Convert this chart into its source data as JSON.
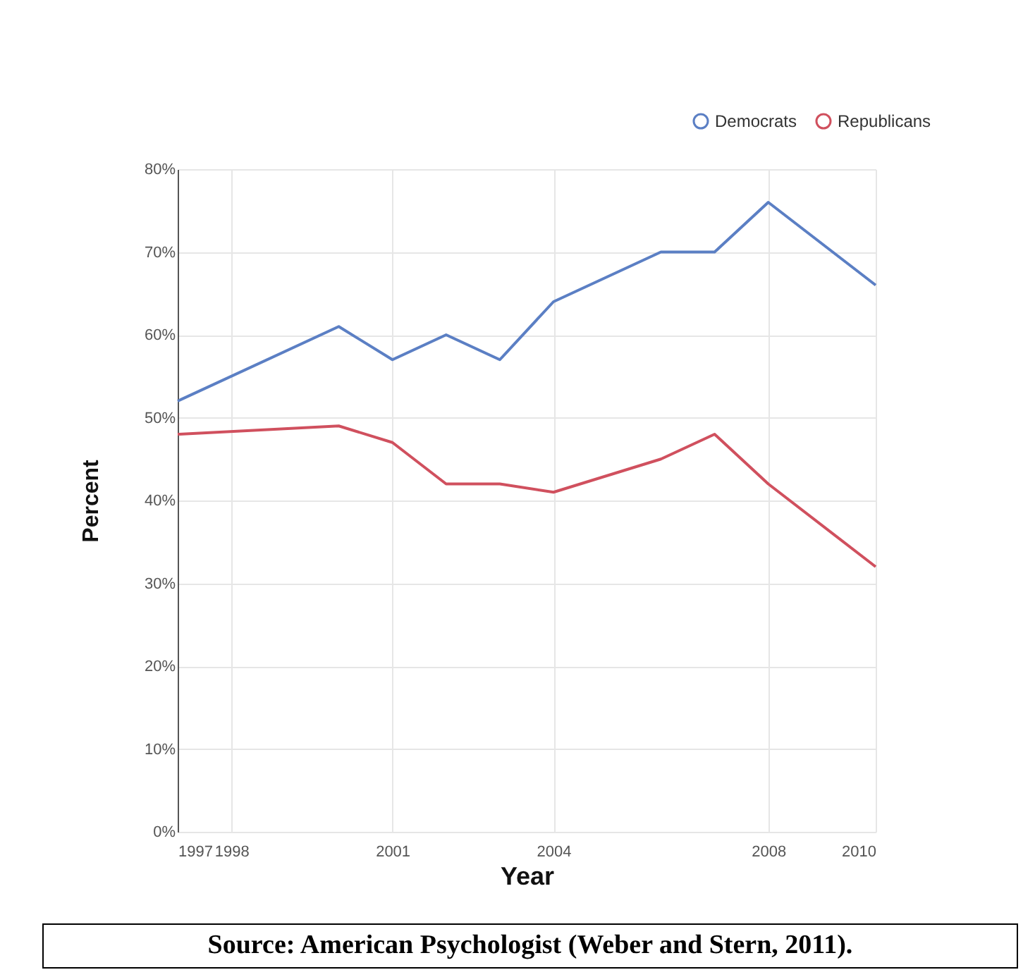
{
  "chart_data": {
    "type": "line",
    "xlabel": "Year",
    "ylabel": "Percent",
    "x": [
      1997,
      2000,
      2001,
      2002,
      2003,
      2004,
      2006,
      2007,
      2008,
      2010
    ],
    "series": [
      {
        "name": "Democrats",
        "color": "#5b7fc4",
        "values": [
          52,
          61,
          57,
          60,
          57,
          64,
          70,
          70,
          76,
          66
        ]
      },
      {
        "name": "Republicans",
        "color": "#d0505e",
        "values": [
          48,
          49,
          47,
          42,
          42,
          41,
          45,
          48,
          42,
          32
        ]
      }
    ],
    "xlim": [
      1997,
      2010
    ],
    "xticks": [
      1997,
      1998,
      2001,
      2004,
      2008,
      2010
    ],
    "ylim": [
      0,
      80
    ],
    "yticks": [
      {
        "value": 0,
        "label": "0%"
      },
      {
        "value": 10,
        "label": "10%"
      },
      {
        "value": 20,
        "label": "20%"
      },
      {
        "value": 30,
        "label": "30%"
      },
      {
        "value": 40,
        "label": "40%"
      },
      {
        "value": 50,
        "label": "50%"
      },
      {
        "value": 60,
        "label": "60%"
      },
      {
        "value": 70,
        "label": "70%"
      },
      {
        "value": 80,
        "label": "80%"
      }
    ],
    "grid": true,
    "legend": "top right",
    "marker": "none",
    "line_style": "solid",
    "annotations": [
      "Source: American Psychologist (Weber and Stern, 2011)."
    ]
  }
}
